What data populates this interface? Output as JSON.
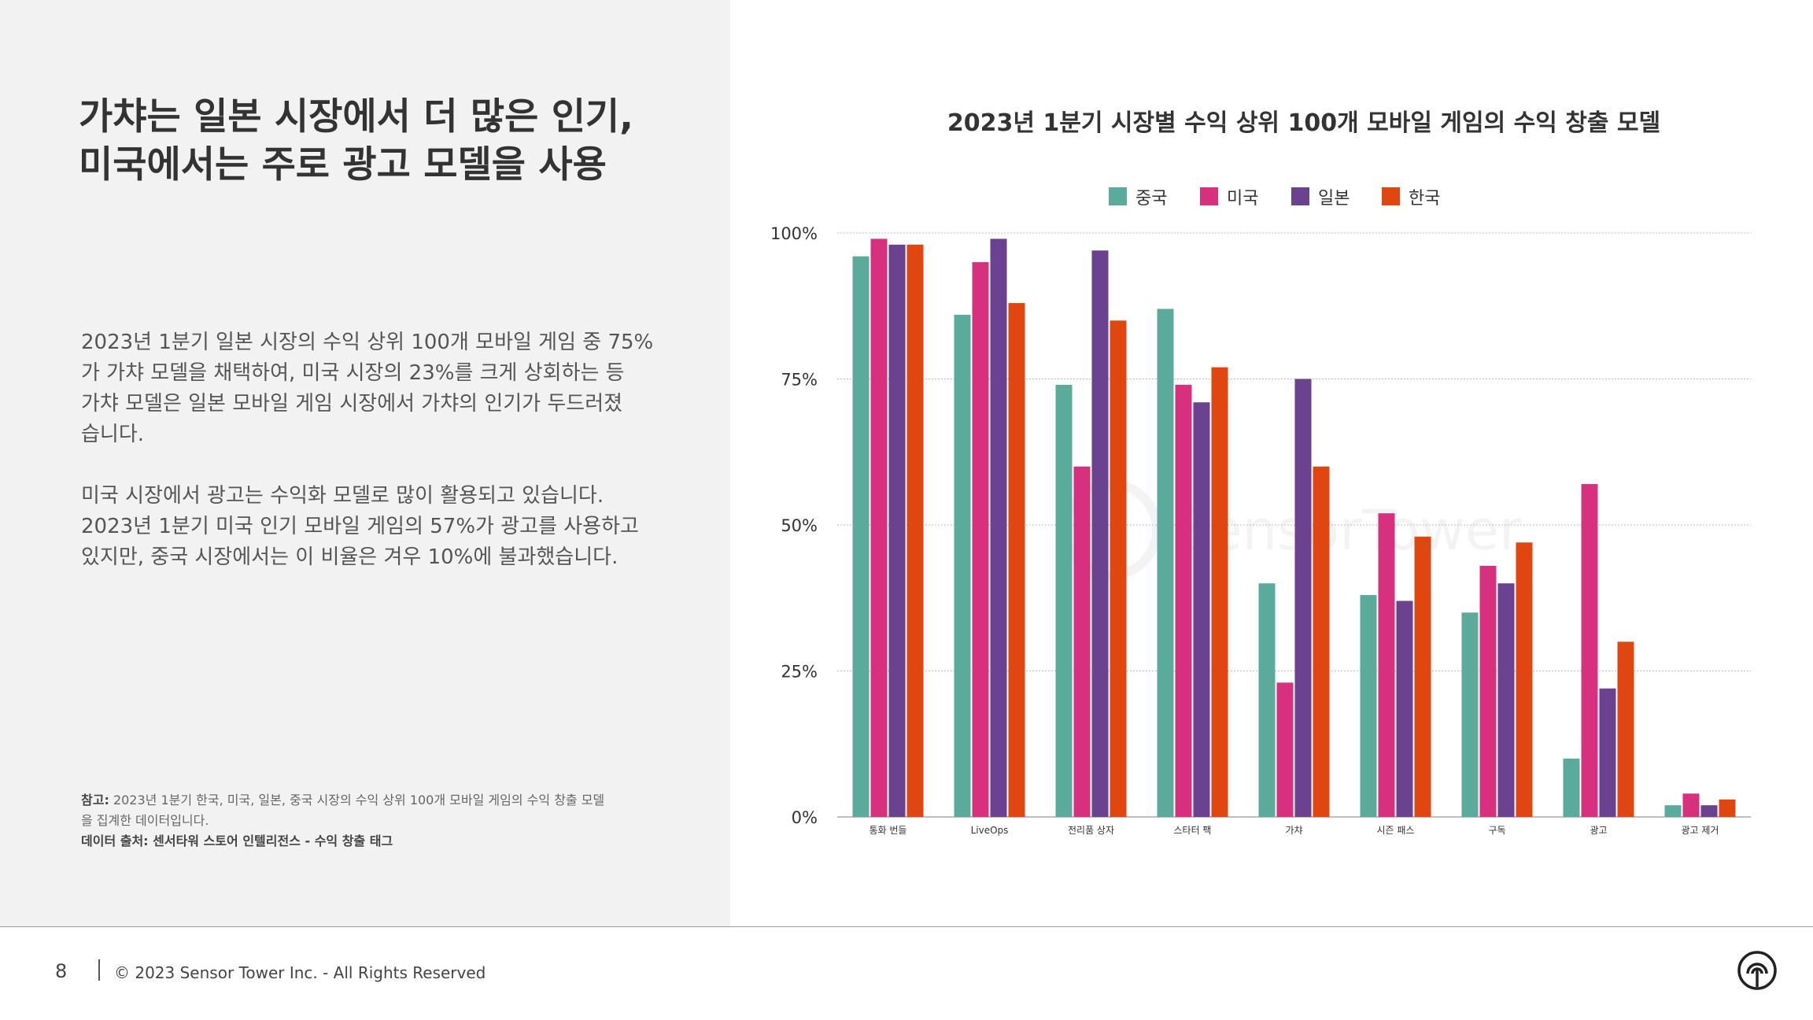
{
  "left": {
    "headline": [
      "가챠는 일본 시장에서 더 많은 인기,",
      "미국에서는 주로 광고 모델을 사용"
    ],
    "paragraph1": [
      "2023년 1분기 일본 시장의 수익 상위 100개 모바일 게임 중 75%",
      "가 가챠 모델을 채택하여, 미국 시장의 23%를 크게 상회하는 등",
      "가챠 모델은 일본 모바일 게임 시장에서 가챠의 인기가 두드러졌",
      "습니다."
    ],
    "paragraph2": [
      "미국 시장에서 광고는 수익화 모델로 많이 활용되고 있습니다.",
      "2023년 1분기 미국 인기 모바일 게임의 57%가 광고를 사용하고",
      "있지만, 중국 시장에서는 이 비율은 겨우 10%에 불과했습니다."
    ],
    "note_label": "참고:",
    "note_text": [
      "2023년 1분기 한국, 미국, 일본, 중국 시장의 수익 상위 100개 모바일 게임의 수익 창출 모델",
      "을 집계한 데이터입니다."
    ],
    "source": "데이터 출처: 센서타워 스토어 인텔리전스 - 수익 창출 태그"
  },
  "footer": {
    "page_number": "8",
    "copyright": "© 2023 Sensor Tower Inc. - All Rights Reserved"
  },
  "watermark": "SensorTower",
  "chart_data": {
    "type": "bar",
    "title": "2023년 1분기 시장별 수익 상위 100개 모바일 게임의 수익 창출 모델",
    "categories": [
      "통화 번들",
      "LiveOps",
      "전리품 상자",
      "스타터 팩",
      "가챠",
      "시즌 패스",
      "구독",
      "광고",
      "광고 제거"
    ],
    "series": [
      {
        "name": "중국",
        "color": "#5aab9c",
        "values": [
          96,
          86,
          74,
          87,
          40,
          38,
          35,
          10,
          2
        ]
      },
      {
        "name": "미국",
        "color": "#d6307f",
        "values": [
          99,
          95,
          60,
          74,
          23,
          52,
          43,
          57,
          4
        ]
      },
      {
        "name": "일본",
        "color": "#6a428f",
        "values": [
          98,
          99,
          97,
          71,
          75,
          37,
          40,
          22,
          2
        ]
      },
      {
        "name": "한국",
        "color": "#e04710",
        "values": [
          98,
          88,
          85,
          77,
          60,
          48,
          47,
          30,
          3
        ]
      }
    ],
    "yticks": [
      "0%",
      "25%",
      "50%",
      "75%",
      "100%"
    ],
    "ylim": [
      0,
      100
    ],
    "grid": true,
    "legend_position": "top-center"
  }
}
